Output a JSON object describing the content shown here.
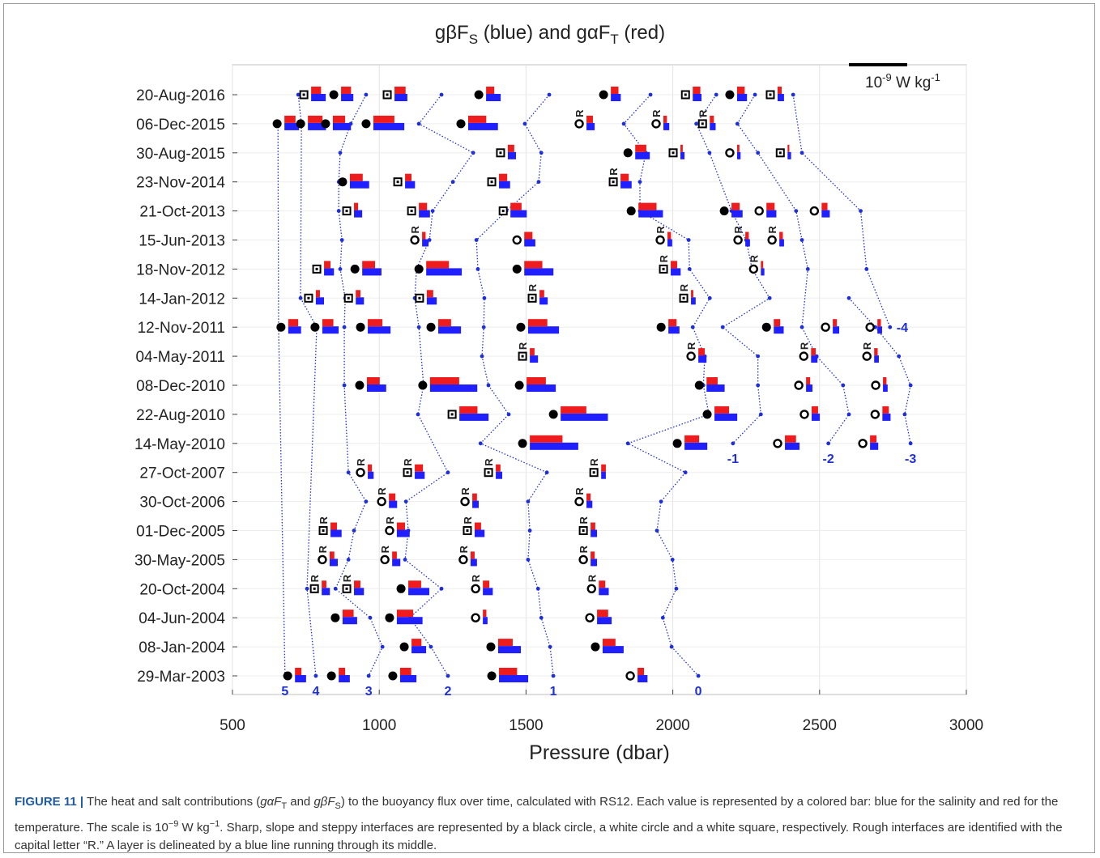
{
  "chart_data": {
    "type": "interface-bars",
    "title": [
      "gβF",
      "S",
      " (blue) and gαF",
      "T",
      " (red)"
    ],
    "xlabel": "Pressure (dbar)",
    "xlim": [
      500,
      3000
    ],
    "xticks": [
      500,
      1000,
      1500,
      2000,
      2500,
      3000
    ],
    "grid": true,
    "categories": [
      "20-Aug-2016",
      "06-Dec-2015",
      "30-Aug-2015",
      "23-Nov-2014",
      "21-Oct-2013",
      "15-Jun-2013",
      "18-Nov-2012",
      "14-Jan-2012",
      "12-Nov-2011",
      "04-May-2011",
      "08-Dec-2010",
      "22-Aug-2010",
      "14-May-2010",
      "27-Oct-2007",
      "30-Oct-2006",
      "01-Dec-2005",
      "30-May-2005",
      "20-Oct-2004",
      "04-Jun-2004",
      "08-Jan-2004",
      "29-Mar-2003"
    ],
    "salt_color": "#1f1fff",
    "heat_color": "#ee1c1c",
    "layer_color": "#1f2fd8",
    "rough_label": "R",
    "scale_bar_value": 1,
    "scale_label": [
      "10",
      "-9",
      " W kg",
      "-1"
    ],
    "interfaces": [
      [
        [
          768,
          0.25,
          0.17,
          "steppy",
          false
        ],
        [
          870,
          0.21,
          0.17,
          "sharp",
          false
        ],
        [
          1052,
          0.22,
          0.19,
          "steppy",
          false
        ],
        [
          1364,
          0.25,
          0.14,
          "sharp",
          false
        ],
        [
          1789,
          0.17,
          0.13,
          "sharp",
          false
        ],
        [
          2068,
          0.15,
          0.13,
          "steppy",
          false
        ],
        [
          2219,
          0.17,
          0.13,
          "sharp",
          false
        ],
        [
          2357,
          0.11,
          0.07,
          "steppy",
          false
        ]
      ],
      [
        [
          677,
          0.25,
          0.19,
          "sharp",
          false
        ],
        [
          757,
          0.31,
          0.25,
          "sharp",
          false
        ],
        [
          842,
          0.31,
          0.21,
          "sharp",
          false
        ],
        [
          980,
          0.53,
          0.36,
          "sharp",
          false
        ],
        [
          1303,
          0.51,
          0.31,
          "sharp",
          false
        ],
        [
          1706,
          0.14,
          0.11,
          "slope",
          true
        ],
        [
          1968,
          0.1,
          0.06,
          "slope",
          true
        ],
        [
          2126,
          0.1,
          0.07,
          "steppy",
          true
        ]
      ],
      [
        [
          1438,
          0.14,
          0.11,
          "steppy",
          false
        ],
        [
          1872,
          0.25,
          0.19,
          "sharp",
          false
        ],
        [
          2026,
          0.07,
          0.04,
          "steppy",
          false
        ],
        [
          2219,
          0.06,
          0.04,
          "slope",
          false
        ],
        [
          2391,
          0.06,
          0.03,
          "steppy",
          false
        ]
      ],
      [
        [
          900,
          0.33,
          0.22,
          "sharp",
          false
        ],
        [
          1088,
          0.17,
          0.11,
          "steppy",
          false
        ],
        [
          1408,
          0.19,
          0.14,
          "steppy",
          false
        ],
        [
          1822,
          0.19,
          0.14,
          "steppy",
          true
        ]
      ],
      [
        [
          914,
          0.14,
          0.07,
          "steppy",
          false
        ],
        [
          1135,
          0.19,
          0.14,
          "steppy",
          false
        ],
        [
          1447,
          0.28,
          0.19,
          "steppy",
          false
        ],
        [
          1883,
          0.42,
          0.31,
          "sharp",
          false
        ],
        [
          2200,
          0.19,
          0.14,
          "sharp",
          false
        ],
        [
          2319,
          0.17,
          0.14,
          "slope",
          false
        ],
        [
          2507,
          0.14,
          0.1,
          "slope",
          false
        ]
      ],
      [
        [
          1146,
          0.11,
          0.06,
          "slope",
          true
        ],
        [
          1494,
          0.19,
          0.14,
          "slope",
          false
        ],
        [
          1982,
          0.08,
          0.06,
          "slope",
          true
        ],
        [
          2247,
          0.08,
          0.06,
          "slope",
          true
        ],
        [
          2363,
          0.08,
          0.06,
          "slope",
          true
        ]
      ],
      [
        [
          812,
          0.17,
          0.11,
          "steppy",
          false
        ],
        [
          942,
          0.33,
          0.22,
          "sharp",
          false
        ],
        [
          1160,
          0.61,
          0.39,
          "sharp",
          false
        ],
        [
          1494,
          0.5,
          0.31,
          "sharp",
          false
        ],
        [
          1993,
          0.17,
          0.11,
          "steppy",
          true
        ],
        [
          2300,
          0.06,
          0.04,
          "slope",
          true
        ]
      ],
      [
        [
          784,
          0.14,
          0.07,
          "steppy",
          false
        ],
        [
          920,
          0.14,
          0.08,
          "steppy",
          false
        ],
        [
          1162,
          0.17,
          0.11,
          "steppy",
          false
        ],
        [
          1546,
          0.14,
          0.08,
          "steppy",
          true
        ],
        [
          2062,
          0.08,
          0.04,
          "steppy",
          true
        ]
      ],
      [
        [
          690,
          0.22,
          0.17,
          "sharp",
          false
        ],
        [
          806,
          0.28,
          0.19,
          "sharp",
          false
        ],
        [
          961,
          0.39,
          0.25,
          "sharp",
          false
        ],
        [
          1201,
          0.39,
          0.22,
          "sharp",
          false
        ],
        [
          1507,
          0.53,
          0.33,
          "sharp",
          false
        ],
        [
          1985,
          0.19,
          0.14,
          "sharp",
          false
        ],
        [
          2344,
          0.17,
          0.11,
          "sharp",
          false
        ],
        [
          2545,
          0.11,
          0.07,
          "slope",
          false
        ],
        [
          2697,
          0.08,
          0.06,
          "slope",
          false
        ]
      ],
      [
        [
          1513,
          0.14,
          0.08,
          "steppy",
          true
        ],
        [
          2087,
          0.14,
          0.11,
          "slope",
          true
        ],
        [
          2471,
          0.11,
          0.08,
          "slope",
          true
        ],
        [
          2686,
          0.08,
          0.06,
          "slope",
          true
        ]
      ],
      [
        [
          958,
          0.33,
          0.22,
          "sharp",
          false
        ],
        [
          1173,
          0.81,
          0.5,
          "sharp",
          false
        ],
        [
          1502,
          0.5,
          0.33,
          "sharp",
          false
        ],
        [
          2115,
          0.31,
          0.19,
          "sharp",
          false
        ],
        [
          2454,
          0.11,
          0.07,
          "slope",
          false
        ],
        [
          2716,
          0.08,
          0.06,
          "slope",
          false
        ]
      ],
      [
        [
          1273,
          0.5,
          0.31,
          "steppy",
          false
        ],
        [
          1618,
          0.81,
          0.44,
          "sharp",
          false
        ],
        [
          2142,
          0.39,
          0.25,
          "sharp",
          false
        ],
        [
          2473,
          0.14,
          0.11,
          "slope",
          false
        ],
        [
          2714,
          0.14,
          0.11,
          "slope",
          false
        ]
      ],
      [
        [
          1513,
          0.83,
          0.56,
          "sharp",
          false
        ],
        [
          2040,
          0.39,
          0.25,
          "sharp",
          false
        ],
        [
          2382,
          0.25,
          0.19,
          "slope",
          false
        ],
        [
          2672,
          0.14,
          0.11,
          "slope",
          false
        ]
      ],
      [
        [
          961,
          0.1,
          0.07,
          "slope",
          true
        ],
        [
          1121,
          0.17,
          0.14,
          "steppy",
          true
        ],
        [
          1397,
          0.11,
          0.08,
          "steppy",
          true
        ],
        [
          1756,
          0.08,
          0.08,
          "steppy",
          true
        ]
      ],
      [
        [
          1033,
          0.14,
          0.11,
          "slope",
          true
        ],
        [
          1317,
          0.11,
          0.08,
          "slope",
          true
        ],
        [
          1706,
          0.1,
          0.07,
          "slope",
          true
        ]
      ],
      [
        [
          834,
          0.19,
          0.11,
          "steppy",
          true
        ],
        [
          1060,
          0.22,
          0.14,
          "slope",
          true
        ],
        [
          1325,
          0.17,
          0.11,
          "steppy",
          true
        ],
        [
          1720,
          0.11,
          0.08,
          "steppy",
          true
        ]
      ],
      [
        [
          831,
          0.14,
          0.08,
          "slope",
          true
        ],
        [
          1044,
          0.14,
          0.08,
          "slope",
          true
        ],
        [
          1311,
          0.11,
          0.07,
          "slope",
          true
        ],
        [
          1720,
          0.11,
          0.07,
          "slope",
          true
        ]
      ],
      [
        [
          804,
          0.14,
          0.08,
          "steppy",
          true
        ],
        [
          914,
          0.17,
          0.11,
          "steppy",
          true
        ],
        [
          1099,
          0.36,
          0.22,
          "sharp",
          false
        ],
        [
          1353,
          0.17,
          0.11,
          "slope",
          true
        ],
        [
          1748,
          0.17,
          0.11,
          "slope",
          true
        ]
      ],
      [
        [
          875,
          0.25,
          0.19,
          "sharp",
          false
        ],
        [
          1060,
          0.44,
          0.28,
          "sharp",
          false
        ],
        [
          1353,
          0.08,
          0.06,
          "slope",
          false
        ],
        [
          1742,
          0.25,
          0.19,
          "slope",
          false
        ]
      ],
      [
        [
          1110,
          0.25,
          0.17,
          "sharp",
          false
        ],
        [
          1405,
          0.39,
          0.25,
          "sharp",
          false
        ],
        [
          1761,
          0.36,
          0.22,
          "sharp",
          false
        ]
      ],
      [
        [
          713,
          0.19,
          0.11,
          "sharp",
          false
        ],
        [
          862,
          0.19,
          0.11,
          "sharp",
          false
        ],
        [
          1071,
          0.28,
          0.19,
          "sharp",
          false
        ],
        [
          1408,
          0.5,
          0.31,
          "sharp",
          false
        ],
        [
          1880,
          0.17,
          0.11,
          "slope",
          false
        ]
      ]
    ],
    "layers": [
      {
        "label": "5",
        "rows": [
          1,
          8,
          20
        ],
        "values": [
          655,
          657,
          679
        ]
      },
      {
        "label": "4",
        "rows": [
          0,
          1,
          7,
          8,
          17,
          20
        ],
        "values": [
          724,
          735,
          732,
          787,
          754,
          784
        ]
      },
      {
        "label": "3",
        "rows": [
          0,
          1,
          2,
          3,
          4,
          5,
          6,
          7,
          8,
          10,
          13,
          14,
          15,
          16,
          17,
          18,
          19,
          20
        ],
        "values": [
          955,
          903,
          867,
          862,
          862,
          873,
          867,
          884,
          881,
          881,
          895,
          955,
          914,
          895,
          851,
          969,
          1011,
          964
        ]
      },
      {
        "label": "2",
        "rows": [
          0,
          1,
          2,
          3,
          4,
          5,
          6,
          7,
          8,
          10,
          11,
          13,
          14,
          15,
          16,
          17,
          18,
          19,
          20
        ],
        "values": [
          1212,
          1135,
          1320,
          1251,
          1182,
          1171,
          1127,
          1121,
          1135,
          1151,
          1132,
          1234,
          1091,
          1099,
          1088,
          1212,
          1104,
          1176,
          1234
        ]
      },
      {
        "label": "1",
        "rows": [
          0,
          1,
          2,
          3,
          4,
          5,
          6,
          7,
          8,
          9,
          10,
          11,
          12,
          13,
          14,
          15,
          16,
          17,
          18,
          19,
          20
        ],
        "values": [
          1579,
          1496,
          1552,
          1543,
          1433,
          1331,
          1336,
          1358,
          1356,
          1350,
          1372,
          1441,
          1345,
          1571,
          1507,
          1513,
          1507,
          1541,
          1552,
          1582,
          1593
        ]
      },
      {
        "label": "0",
        "rows": [
          0,
          1,
          2,
          3,
          4,
          5,
          6,
          7,
          8,
          9,
          10,
          11,
          12,
          13,
          14,
          15,
          16,
          17,
          18,
          19,
          20
        ],
        "values": [
          1924,
          1833,
          1908,
          1888,
          1888,
          2054,
          2057,
          2126,
          2068,
          2109,
          2104,
          2123,
          1847,
          2043,
          1960,
          1946,
          1999,
          2012,
          1966,
          1996,
          2087
        ]
      },
      {
        "label": "-1",
        "rows": [
          0,
          1,
          2,
          4,
          5,
          6,
          7,
          8,
          9,
          10,
          11,
          12
        ],
        "values": [
          2148,
          2080,
          2125,
          2200,
          2250,
          2270,
          2330,
          2170,
          2290,
          2290,
          2300,
          2205
        ]
      },
      {
        "label": "-2",
        "rows": [
          0,
          1,
          2,
          4,
          5,
          6,
          8,
          9,
          10,
          11,
          12
        ],
        "values": [
          2280,
          2220,
          2290,
          2420,
          2440,
          2460,
          2440,
          2490,
          2580,
          2600,
          2530
        ]
      },
      {
        "label": "-3",
        "rows": [
          7,
          8,
          9,
          10,
          11,
          12
        ],
        "values": [
          2600,
          2690,
          2770,
          2810,
          2790,
          2810
        ]
      },
      {
        "label": "-4",
        "rows": [
          0,
          2,
          4,
          6,
          8
        ],
        "values": [
          2410,
          2440,
          2640,
          2660,
          2740
        ]
      }
    ]
  },
  "caption": {
    "label": "FIGURE 11 |",
    "segments": [
      [
        " The heat and salt contributions (",
        ""
      ],
      [
        "gαF",
        "i"
      ],
      [
        "T",
        "sub"
      ],
      [
        " and ",
        ""
      ],
      [
        "gβF",
        "i"
      ],
      [
        "S",
        "sub"
      ],
      [
        ") to the buoyancy flux over time, calculated with RS12. Each value is represented by a colored bar: blue for the salinity and red for the temperature. The scale is 10",
        ""
      ],
      [
        "−9",
        "sup"
      ],
      [
        " W kg",
        ""
      ],
      [
        "−1",
        "sup"
      ],
      [
        ". Sharp, slope and steppy interfaces are represented by a black circle, a white circle and a white square, respectively. Rough interfaces are identified with the capital letter “R.” A layer is delineated by a blue line running through its middle.",
        ""
      ]
    ]
  }
}
